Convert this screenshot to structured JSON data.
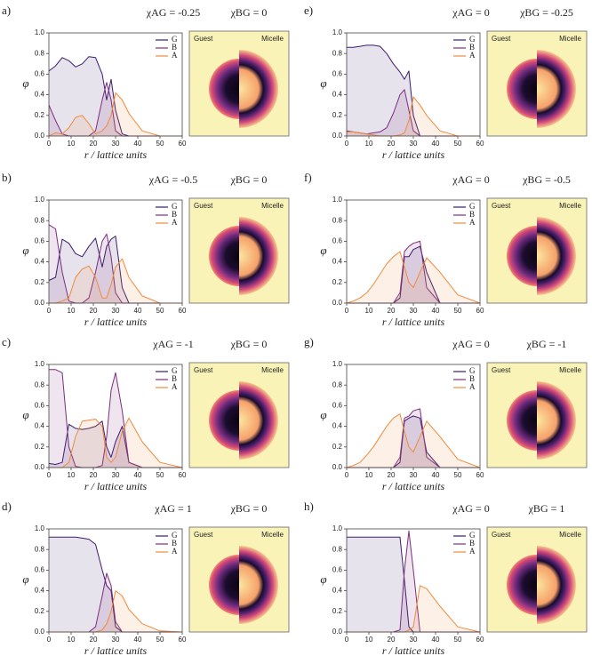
{
  "chart_data": [
    {
      "type": "line",
      "panel": "a)",
      "title_left": "χAG = -0.25",
      "title_right": "χBG = 0",
      "image_labels": [
        "Guest",
        "Micelle"
      ],
      "xlabel": "r / lattice units",
      "ylabel": "φ",
      "legend": "upper right",
      "x": [
        0,
        3,
        6,
        9,
        12,
        15,
        18,
        21,
        24,
        26,
        28,
        30,
        33,
        36,
        42,
        50,
        60
      ],
      "xlim": [
        0,
        60
      ],
      "ylim": [
        0,
        1
      ],
      "xticks": [
        0,
        10,
        20,
        30,
        40,
        50,
        60
      ],
      "yticks": [
        {
          "value": 0,
          "label": "0.0"
        },
        0.2,
        0.4,
        0.6,
        0.8,
        {
          "value": 1,
          "label": "1.0"
        }
      ],
      "series": [
        {
          "name": "G",
          "color": "#3b1c6b",
          "values": [
            0.63,
            0.68,
            0.76,
            0.73,
            0.67,
            0.7,
            0.77,
            0.76,
            0.6,
            0.35,
            0.55,
            0.25,
            0.02,
            0,
            0,
            0,
            0
          ]
        },
        {
          "name": "B",
          "color": "#7b2d7d",
          "values": [
            0.3,
            0.15,
            0.02,
            0,
            0,
            0,
            0,
            0.05,
            0.35,
            0.52,
            0.35,
            0.05,
            0,
            0,
            0,
            0,
            0
          ]
        },
        {
          "name": "A",
          "color": "#f08a3c",
          "values": [
            0,
            0.03,
            0.02,
            0.08,
            0.18,
            0.2,
            0.12,
            0.02,
            0.05,
            0.1,
            0.2,
            0.42,
            0.35,
            0.22,
            0.05,
            0,
            0
          ]
        }
      ]
    },
    {
      "type": "line",
      "panel": "b)",
      "title_left": "χAG = -0.5",
      "title_right": "χBG = 0",
      "image_labels": [
        "Guest",
        "Micelle"
      ],
      "xlabel": "r / lattice units",
      "ylabel": "φ",
      "legend": "upper right",
      "x": [
        0,
        3,
        6,
        9,
        12,
        15,
        18,
        21,
        24,
        26,
        28,
        30,
        33,
        36,
        42,
        50,
        60
      ],
      "xlim": [
        0,
        60
      ],
      "ylim": [
        0,
        1
      ],
      "xticks": [
        0,
        10,
        20,
        30,
        40,
        50,
        60
      ],
      "yticks": [
        {
          "value": 0,
          "label": "0.0"
        },
        0.2,
        0.4,
        0.6,
        0.8,
        {
          "value": 1,
          "label": "1.0"
        }
      ],
      "series": [
        {
          "name": "G",
          "color": "#3b1c6b",
          "values": [
            0.22,
            0.25,
            0.62,
            0.58,
            0.48,
            0.45,
            0.55,
            0.63,
            0.35,
            0.55,
            0.62,
            0.65,
            0.15,
            0,
            0,
            0,
            0
          ]
        },
        {
          "name": "B",
          "color": "#7b2d7d",
          "values": [
            0.76,
            0.72,
            0.3,
            0.02,
            0,
            0,
            0.05,
            0.3,
            0.6,
            0.67,
            0.45,
            0.1,
            0,
            0,
            0,
            0,
            0
          ]
        },
        {
          "name": "A",
          "color": "#f08a3c",
          "values": [
            0,
            0,
            0.02,
            0.05,
            0.25,
            0.33,
            0.36,
            0.25,
            0.05,
            0.05,
            0.18,
            0.35,
            0.43,
            0.25,
            0.07,
            0,
            0
          ]
        }
      ]
    },
    {
      "type": "line",
      "panel": "c)",
      "title_left": "χAG = -1",
      "title_right": "χBG = 0",
      "image_labels": [
        "Guest",
        "Micelle"
      ],
      "xlabel": "r / lattice units",
      "ylabel": "φ",
      "legend": "upper right",
      "x": [
        0,
        3,
        6,
        9,
        12,
        15,
        18,
        21,
        24,
        26,
        28,
        30,
        33,
        36,
        42,
        50,
        60
      ],
      "xlim": [
        0,
        60
      ],
      "ylim": [
        0,
        1
      ],
      "xticks": [
        0,
        10,
        20,
        30,
        40,
        50,
        60
      ],
      "yticks": [
        {
          "value": 0,
          "label": "0.0"
        },
        0.2,
        0.4,
        0.6,
        0.8,
        {
          "value": 1,
          "label": "1.0"
        }
      ],
      "series": [
        {
          "name": "G",
          "color": "#3b1c6b",
          "values": [
            0.04,
            0.03,
            0.05,
            0.42,
            0.38,
            0.37,
            0.38,
            0.4,
            0.45,
            0.2,
            0.1,
            0.25,
            0.4,
            0.05,
            0,
            0,
            0
          ]
        },
        {
          "name": "B",
          "color": "#7b2d7d",
          "values": [
            0.95,
            0.95,
            0.92,
            0.2,
            0.01,
            0,
            0,
            0,
            0.02,
            0.3,
            0.75,
            0.92,
            0.55,
            0.05,
            0,
            0,
            0
          ]
        },
        {
          "name": "A",
          "color": "#f08a3c",
          "values": [
            0,
            0,
            0,
            0.05,
            0.3,
            0.45,
            0.46,
            0.47,
            0.4,
            0.1,
            0.05,
            0.1,
            0.35,
            0.48,
            0.25,
            0.05,
            0
          ]
        }
      ]
    },
    {
      "type": "line",
      "panel": "d)",
      "title_left": "χAG = 1",
      "title_right": "χBG = 0",
      "image_labels": [
        "Guest",
        "Micelle"
      ],
      "xlabel": "r / lattice units",
      "ylabel": "φ",
      "legend": "upper right",
      "x": [
        0,
        3,
        6,
        9,
        12,
        15,
        18,
        21,
        24,
        26,
        28,
        30,
        33,
        36,
        42,
        50,
        60
      ],
      "xlim": [
        0,
        60
      ],
      "ylim": [
        0,
        1
      ],
      "xticks": [
        0,
        10,
        20,
        30,
        40,
        50,
        60
      ],
      "yticks": [
        {
          "value": 0,
          "label": "0.0"
        },
        0.2,
        0.4,
        0.6,
        0.8,
        {
          "value": 1,
          "label": "1.0"
        }
      ],
      "series": [
        {
          "name": "G",
          "color": "#3b1c6b",
          "values": [
            0.92,
            0.92,
            0.92,
            0.92,
            0.92,
            0.91,
            0.9,
            0.85,
            0.6,
            0.45,
            0.4,
            0.05,
            0,
            0,
            0,
            0,
            0
          ]
        },
        {
          "name": "B",
          "color": "#7b2d7d",
          "values": [
            0,
            0,
            0,
            0,
            0,
            0,
            0,
            0.05,
            0.35,
            0.57,
            0.45,
            0.1,
            0,
            0,
            0,
            0,
            0
          ]
        },
        {
          "name": "A",
          "color": "#f08a3c",
          "values": [
            0,
            0,
            0,
            0,
            0,
            0,
            0,
            0,
            0.02,
            0.08,
            0.2,
            0.4,
            0.35,
            0.22,
            0.08,
            0.01,
            0
          ]
        }
      ]
    },
    {
      "type": "line",
      "panel": "e)",
      "title_left": "χAG = 0",
      "title_right": "χBG = -0.25",
      "image_labels": [
        "Guest",
        "Micelle"
      ],
      "xlabel": "r / lattice units",
      "ylabel": "φ",
      "legend": "upper right",
      "x": [
        0,
        3,
        6,
        9,
        12,
        15,
        18,
        21,
        24,
        26,
        28,
        30,
        33,
        36,
        42,
        50,
        60
      ],
      "xlim": [
        0,
        60
      ],
      "ylim": [
        0,
        1
      ],
      "xticks": [
        0,
        10,
        20,
        30,
        40,
        50,
        60
      ],
      "yticks": [
        {
          "value": 0,
          "label": "0.0"
        },
        0.2,
        0.4,
        0.6,
        0.8,
        {
          "value": 1,
          "label": "1.0"
        }
      ],
      "series": [
        {
          "name": "G",
          "color": "#3b1c6b",
          "values": [
            0.86,
            0.86,
            0.87,
            0.88,
            0.88,
            0.87,
            0.8,
            0.7,
            0.62,
            0.55,
            0.63,
            0.2,
            0,
            0,
            0,
            0,
            0
          ]
        },
        {
          "name": "B",
          "color": "#7b2d7d",
          "values": [
            0.05,
            0.04,
            0.03,
            0.02,
            0.03,
            0.04,
            0.08,
            0.22,
            0.4,
            0.45,
            0.25,
            0.05,
            0,
            0,
            0,
            0,
            0
          ]
        },
        {
          "name": "A",
          "color": "#f08a3c",
          "values": [
            0.04,
            0.04,
            0.03,
            0.02,
            0.01,
            0,
            0,
            0,
            0.01,
            0.03,
            0.15,
            0.38,
            0.3,
            0.2,
            0.05,
            0,
            0
          ]
        }
      ]
    },
    {
      "type": "line",
      "panel": "f)",
      "title_left": "χAG = 0",
      "title_right": "χBG = -0.5",
      "image_labels": [
        "Guest",
        "Micelle"
      ],
      "xlabel": "r / lattice units",
      "ylabel": "φ",
      "legend": "upper right",
      "x": [
        0,
        3,
        6,
        9,
        12,
        15,
        18,
        21,
        24,
        26,
        28,
        30,
        33,
        36,
        42,
        50,
        60
      ],
      "xlim": [
        0,
        60
      ],
      "ylim": [
        0,
        1
      ],
      "xticks": [
        0,
        10,
        20,
        30,
        40,
        50,
        60
      ],
      "yticks": [
        {
          "value": 0,
          "label": "0.0"
        },
        0.2,
        0.4,
        0.6,
        0.8,
        {
          "value": 1,
          "label": "1.0"
        }
      ],
      "series": [
        {
          "name": "G",
          "color": "#3b1c6b",
          "values": [
            0,
            0,
            0,
            0,
            0,
            0,
            0,
            0,
            0.05,
            0.45,
            0.45,
            0.52,
            0.55,
            0.3,
            0,
            0,
            0
          ]
        },
        {
          "name": "B",
          "color": "#7b2d7d",
          "values": [
            0,
            0,
            0,
            0,
            0,
            0,
            0,
            0,
            0.1,
            0.5,
            0.55,
            0.58,
            0.6,
            0.15,
            0,
            0,
            0
          ]
        },
        {
          "name": "A",
          "color": "#f08a3c",
          "values": [
            0,
            0.02,
            0.05,
            0.1,
            0.18,
            0.28,
            0.38,
            0.45,
            0.5,
            0.35,
            0.2,
            0.15,
            0.3,
            0.44,
            0.3,
            0.08,
            0
          ]
        }
      ]
    },
    {
      "type": "line",
      "panel": "g)",
      "title_left": "χAG = 0",
      "title_right": "χBG = -1",
      "image_labels": [
        "Guest",
        "Micelle"
      ],
      "xlabel": "r / lattice units",
      "ylabel": "φ",
      "legend": "upper right",
      "x": [
        0,
        3,
        6,
        9,
        12,
        15,
        18,
        21,
        24,
        26,
        28,
        30,
        33,
        36,
        42,
        50,
        60
      ],
      "xlim": [
        0,
        60
      ],
      "ylim": [
        0,
        1
      ],
      "xticks": [
        0,
        10,
        20,
        30,
        40,
        50,
        60
      ],
      "yticks": [
        {
          "value": 0,
          "label": "0.0"
        },
        0.2,
        0.4,
        0.6,
        0.8,
        {
          "value": 1,
          "label": "1.0"
        }
      ],
      "series": [
        {
          "name": "G",
          "color": "#3b1c6b",
          "values": [
            0,
            0,
            0,
            0,
            0,
            0,
            0,
            0,
            0.05,
            0.45,
            0.48,
            0.5,
            0.48,
            0.15,
            0,
            0,
            0
          ]
        },
        {
          "name": "B",
          "color": "#7b2d7d",
          "values": [
            0,
            0,
            0,
            0,
            0,
            0,
            0,
            0,
            0.1,
            0.48,
            0.5,
            0.55,
            0.57,
            0.1,
            0,
            0,
            0
          ]
        },
        {
          "name": "A",
          "color": "#f08a3c",
          "values": [
            0,
            0.02,
            0.05,
            0.12,
            0.2,
            0.3,
            0.4,
            0.48,
            0.52,
            0.35,
            0.2,
            0.15,
            0.3,
            0.45,
            0.3,
            0.08,
            0
          ]
        }
      ]
    },
    {
      "type": "line",
      "panel": "h)",
      "title_left": "χAG = 0",
      "title_right": "χBG = 1",
      "image_labels": [
        "Guest",
        "Micelle"
      ],
      "xlabel": "r / lattice units",
      "ylabel": "φ",
      "legend": "upper right",
      "x": [
        0,
        3,
        6,
        9,
        12,
        15,
        18,
        21,
        24,
        26,
        28,
        30,
        33,
        36,
        42,
        50,
        60
      ],
      "xlim": [
        0,
        60
      ],
      "ylim": [
        0,
        1
      ],
      "xticks": [
        0,
        10,
        20,
        30,
        40,
        50,
        60
      ],
      "yticks": [
        {
          "value": 0,
          "label": "0.0"
        },
        0.2,
        0.4,
        0.6,
        0.8,
        {
          "value": 1,
          "label": "1.0"
        }
      ],
      "series": [
        {
          "name": "G",
          "color": "#3b1c6b",
          "values": [
            0.92,
            0.92,
            0.92,
            0.92,
            0.92,
            0.92,
            0.92,
            0.92,
            0.92,
            0.5,
            0.05,
            0,
            0,
            0,
            0,
            0,
            0
          ]
        },
        {
          "name": "B",
          "color": "#7b2d7d",
          "values": [
            0,
            0,
            0,
            0,
            0,
            0,
            0,
            0,
            0.02,
            0.6,
            0.98,
            0.6,
            0,
            0,
            0,
            0,
            0
          ]
        },
        {
          "name": "A",
          "color": "#f08a3c",
          "values": [
            0,
            0,
            0,
            0,
            0,
            0,
            0,
            0,
            0,
            0,
            0.02,
            0.05,
            0.45,
            0.42,
            0.25,
            0.05,
            0
          ]
        }
      ]
    }
  ]
}
